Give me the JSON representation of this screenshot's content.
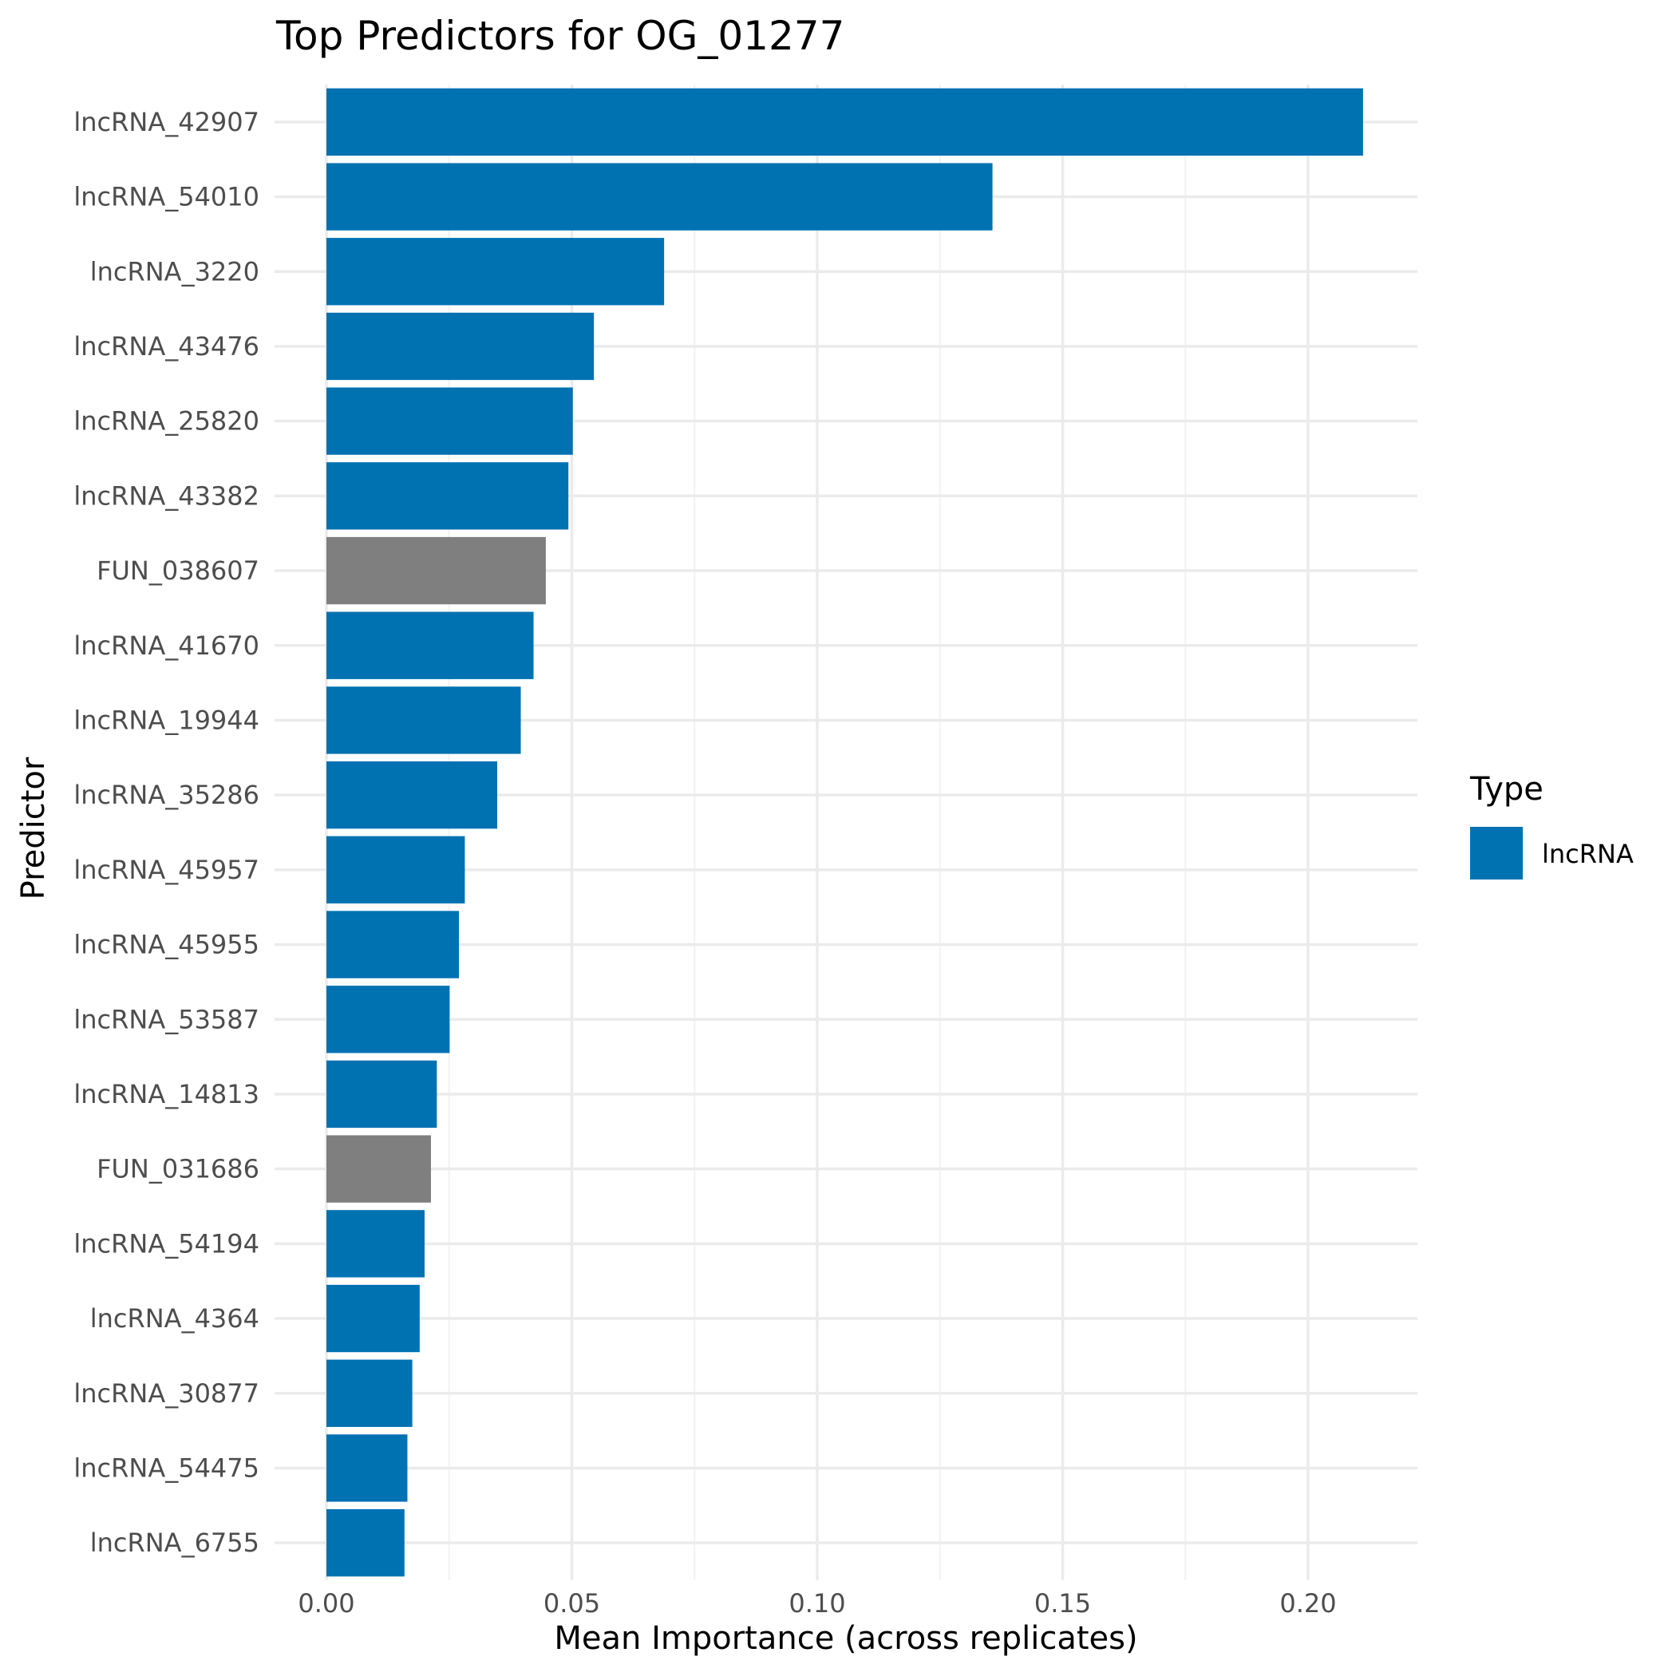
{
  "chart_data": {
    "type": "bar",
    "orientation": "horizontal",
    "title": "Top Predictors for OG_01277",
    "xlabel": "Mean Importance (across replicates)",
    "ylabel": "Predictor",
    "xlim": [
      0,
      0.22
    ],
    "xticks": [
      0.0,
      0.05,
      0.1,
      0.15,
      0.2
    ],
    "xtick_labels": [
      "0.00",
      "0.05",
      "0.10",
      "0.15",
      "0.20"
    ],
    "grid": true,
    "legend": {
      "title": "Type",
      "placement": "right",
      "entries": [
        {
          "label": "lncRNA",
          "color": "#0072B2"
        }
      ]
    },
    "colors": {
      "lncRNA": "#0072B2",
      "other": "#7F7F7F"
    },
    "categories": [
      "lncRNA_42907",
      "lncRNA_54010",
      "lncRNA_3220",
      "lncRNA_43476",
      "lncRNA_25820",
      "lncRNA_43382",
      "FUN_038607",
      "lncRNA_41670",
      "lncRNA_19944",
      "lncRNA_35286",
      "lncRNA_45957",
      "lncRNA_45955",
      "lncRNA_53587",
      "lncRNA_14813",
      "FUN_031686",
      "lncRNA_54194",
      "lncRNA_4364",
      "lncRNA_30877",
      "lncRNA_54475",
      "lncRNA_6755"
    ],
    "values": [
      0.2112,
      0.1357,
      0.0688,
      0.0545,
      0.0502,
      0.0493,
      0.0447,
      0.0422,
      0.0396,
      0.0348,
      0.0282,
      0.027,
      0.0251,
      0.0225,
      0.0213,
      0.02,
      0.019,
      0.0175,
      0.0165,
      0.0159
    ],
    "types": [
      "lncRNA",
      "lncRNA",
      "lncRNA",
      "lncRNA",
      "lncRNA",
      "lncRNA",
      "other",
      "lncRNA",
      "lncRNA",
      "lncRNA",
      "lncRNA",
      "lncRNA",
      "lncRNA",
      "lncRNA",
      "other",
      "lncRNA",
      "lncRNA",
      "lncRNA",
      "lncRNA",
      "lncRNA"
    ]
  }
}
